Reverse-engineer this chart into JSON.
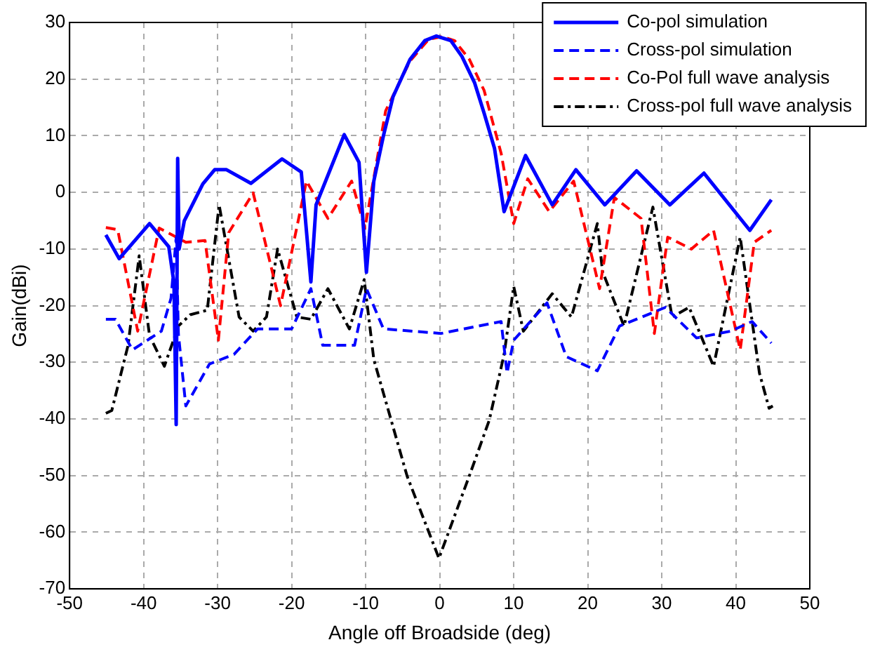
{
  "chart_data": {
    "type": "line",
    "xlabel": "Angle off Broadside (deg)",
    "ylabel": "Gain(dBi)",
    "xlim": [
      -50,
      50
    ],
    "xticks": [
      -50,
      -40,
      -30,
      -20,
      -10,
      0,
      10,
      20,
      30,
      40,
      50
    ],
    "ylim": [
      -70,
      30
    ],
    "yticks": [
      -70,
      -60,
      -50,
      -40,
      -30,
      -20,
      -10,
      0,
      10,
      20,
      30
    ],
    "grid": true,
    "legend": "top right",
    "marker": "none",
    "series": [
      {
        "name": "Co-pol simulation",
        "color": "#0000ff",
        "line_style": "solid",
        "x": [
          -45.1,
          -43.3,
          -39.2,
          -36.6,
          -35.9,
          -35.6,
          -35.4,
          -35.2,
          -34.5,
          -32,
          -30.4,
          -28.8,
          -25.5,
          -21.3,
          -18.7,
          -17.4,
          -16.7,
          -12.9,
          -10.9,
          -9.9,
          -8.9,
          -7.6,
          -6.3,
          -4,
          -2,
          -0.45,
          1.5,
          3,
          4.7,
          6,
          7.4,
          8.7,
          11.6,
          15.2,
          18.4,
          22.3,
          26.6,
          31.1,
          35.7,
          41.9,
          44.8
        ],
        "values": [
          -7.5,
          -11.7,
          -5.5,
          -9.6,
          -16,
          -41,
          6,
          -10,
          -5,
          1.5,
          4,
          4,
          1.6,
          5.9,
          3.6,
          -15.8,
          -2.2,
          10.2,
          5.3,
          -14.1,
          2,
          10,
          16.9,
          23.5,
          26.8,
          27.6,
          26.8,
          24,
          19.4,
          14,
          7.8,
          -3.4,
          6.5,
          -2.2,
          4,
          -2.2,
          3.8,
          -2.2,
          3.4,
          -6.7,
          -1.3
        ]
      },
      {
        "name": "Cross-pol simulation",
        "color": "#0000ff",
        "line_style": "dashed",
        "x": [
          -45.1,
          -43.8,
          -41.5,
          -37.6,
          -36.3,
          -35.6,
          -35.3,
          -34.3,
          -31.1,
          -27.8,
          -24.6,
          -20,
          -17.4,
          -15.8,
          -11.5,
          -9.9,
          -7.6,
          0.2,
          8.3,
          9.1,
          10,
          14.5,
          17.1,
          21.3,
          24.3,
          30.5,
          34.7,
          39.3,
          42.2,
          44.8
        ],
        "values": [
          -22.4,
          -22.4,
          -27.8,
          -24.5,
          -18.7,
          -8,
          -25,
          -37.7,
          -30.3,
          -28.6,
          -24.1,
          -24.1,
          -17,
          -27,
          -27,
          -17,
          -24.1,
          -24.9,
          -22.8,
          -31.9,
          -26.1,
          -19.5,
          -29,
          -31.5,
          -23.6,
          -20.3,
          -25.7,
          -24.5,
          -22.8,
          -26.6
        ]
      },
      {
        "name": "Co-Pol full wave analysis",
        "color": "#ff0000",
        "line_style": "dashed",
        "x": [
          -45.1,
          -43.5,
          -40.8,
          -37.9,
          -34.3,
          -31.7,
          -29.9,
          -28.5,
          -25.2,
          -21.5,
          -18,
          -15.1,
          -11.9,
          -10.1,
          -7.3,
          -4,
          -1.5,
          0.3,
          2,
          4,
          6,
          8.3,
          10,
          11.9,
          14.8,
          18.1,
          21.6,
          23.6,
          27.2,
          29,
          30.8,
          34,
          37,
          40.6,
          42.5,
          44.8
        ],
        "values": [
          -6.2,
          -6.6,
          -24.5,
          -6.3,
          -8.8,
          -8.5,
          -26.1,
          -7.1,
          -0.1,
          -20,
          2,
          -4.6,
          2,
          -6.3,
          14.4,
          23.2,
          27,
          27.5,
          26.8,
          23.5,
          18,
          6.9,
          -5.5,
          2.4,
          -3.4,
          2,
          -17,
          -0.9,
          -4.6,
          -24.9,
          -7.9,
          -10,
          -6.7,
          -27.8,
          -8.8,
          -6.7
        ]
      },
      {
        "name": "Cross-pol full wave analysis",
        "color": "#000000",
        "line_style": "dashdot",
        "x": [
          -45.1,
          -44.3,
          -42.1,
          -40.6,
          -39.2,
          -37.2,
          -35.3,
          -33.7,
          -31.4,
          -29.8,
          -27.1,
          -25.2,
          -23.4,
          -21.9,
          -19.3,
          -17.4,
          -15.1,
          -12.2,
          -10.2,
          -8.9,
          -4.4,
          -0.1,
          4.1,
          6.7,
          8.7,
          10,
          11.3,
          15.2,
          17.8,
          21.3,
          22,
          24.9,
          28.8,
          31.4,
          33.7,
          37,
          40.6,
          43.2,
          44.5,
          45
        ],
        "values": [
          -39,
          -38.5,
          -27,
          -11.2,
          -25.3,
          -30.7,
          -23.6,
          -21.6,
          -20.8,
          -2.2,
          -22,
          -24.5,
          -22,
          -10,
          -22,
          -22.4,
          -17,
          -24.1,
          -15.4,
          -29.5,
          -50.1,
          -64.6,
          -49.7,
          -40.2,
          -28.6,
          -16.6,
          -24.5,
          -17.9,
          -22,
          -5.5,
          -14,
          -23.6,
          -2.6,
          -22,
          -20.3,
          -30.7,
          -7.9,
          -31.9,
          -38.1,
          -37.7
        ]
      }
    ]
  }
}
